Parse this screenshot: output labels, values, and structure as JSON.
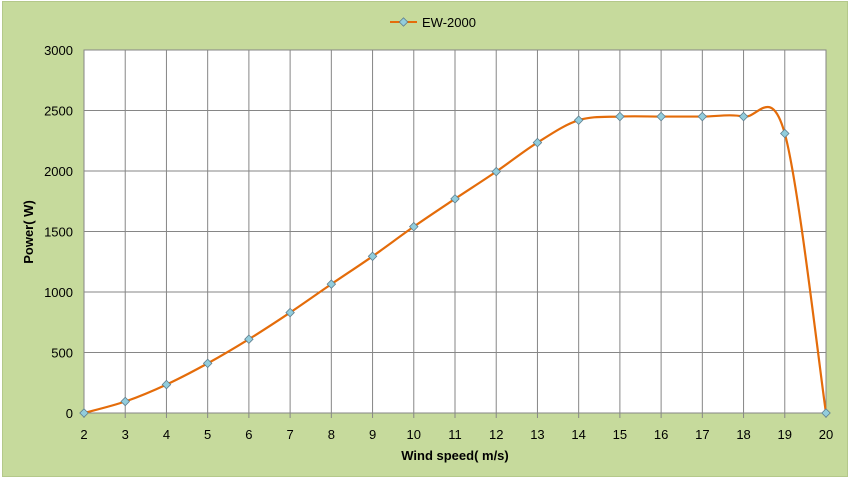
{
  "chart_data": {
    "type": "line",
    "title": "",
    "xlabel": "Wind speed( m/s)",
    "ylabel": "Power( W)",
    "xlim": [
      2,
      20
    ],
    "ylim": [
      0,
      3000
    ],
    "x_ticks": [
      2,
      3,
      4,
      5,
      6,
      7,
      8,
      9,
      10,
      11,
      12,
      13,
      14,
      15,
      16,
      17,
      18,
      19,
      20
    ],
    "y_ticks": [
      0,
      500,
      1000,
      1500,
      2000,
      2500,
      3000
    ],
    "grid": true,
    "legend_position": "top-center",
    "series": [
      {
        "name": "EW-2000",
        "color": "#e46c0a",
        "marker_color": "#92cddc",
        "marker": "diamond",
        "smooth": true,
        "x": [
          2,
          3,
          4,
          5,
          6,
          7,
          8,
          9,
          10,
          11,
          12,
          13,
          14,
          15,
          16,
          17,
          18,
          19,
          20
        ],
        "y": [
          0,
          95,
          235,
          410,
          610,
          830,
          1065,
          1295,
          1540,
          1770,
          1995,
          2235,
          2420,
          2450,
          2450,
          2450,
          2450,
          2310,
          0
        ]
      }
    ]
  }
}
